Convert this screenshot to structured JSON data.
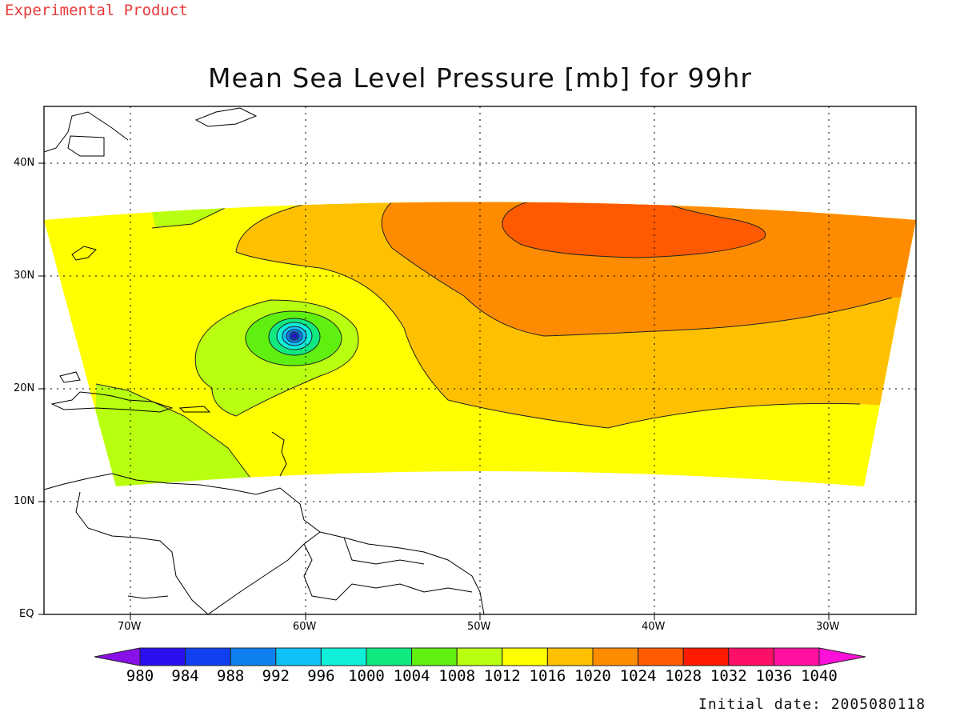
{
  "header": {
    "tag": "Experimental Product"
  },
  "map": {
    "title": "Mean Sea Level Pressure [mb] for 99hr",
    "lon_labels": [
      "70W",
      "60W",
      "50W",
      "40W",
      "30W"
    ],
    "lat_labels": [
      "EQ",
      "10N",
      "20N",
      "30N",
      "40N"
    ],
    "lon_range": [
      -75,
      -25
    ],
    "lat_range": [
      0,
      45
    ],
    "low_center": {
      "lon": -60.7,
      "lat": 24.8
    }
  },
  "colorbar": {
    "labels": [
      "980",
      "984",
      "988",
      "992",
      "996",
      "1000",
      "1004",
      "1008",
      "1012",
      "1016",
      "1020",
      "1024",
      "1028",
      "1032",
      "1036",
      "1040"
    ],
    "colors": [
      "#8a10e8",
      "#2a10f0",
      "#1040f0",
      "#1080f0",
      "#10c0f8",
      "#10f0d8",
      "#10e880",
      "#60f010",
      "#b8ff10",
      "#ffff00",
      "#ffc000",
      "#ff8c00",
      "#ff5a00",
      "#ff1a00",
      "#ff1068",
      "#ff10a0",
      "#ff10d8"
    ]
  },
  "footer": {
    "initial_date": "Initial date: 2005080118"
  }
}
